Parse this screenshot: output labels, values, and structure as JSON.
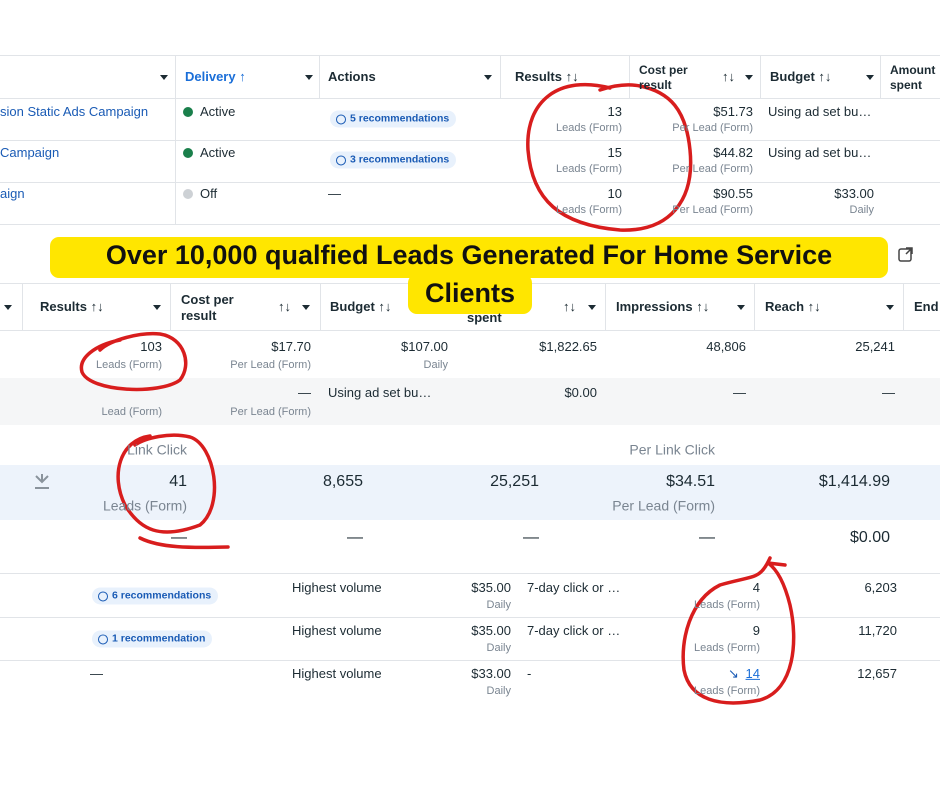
{
  "banner": {
    "lines": [
      "Over 10,000 qualfied Leads Generated For Home Service",
      "Clients"
    ]
  },
  "table1": {
    "headers": [
      "Delivery ↑",
      "Actions",
      "Results ↑↓",
      {
        "text": "Cost per result",
        "icon": "↑↓"
      },
      "Budget ↑↓",
      "Amount spent"
    ],
    "rows": [
      {
        "name": "sion Static Ads Campaign",
        "delivery": "Active",
        "actions": "5 recommendations",
        "results": "13",
        "results_type": "Leads (Form)",
        "cost": "$51.73",
        "cost_type": "Per Lead (Form)",
        "budget": "Using ad set bu…"
      },
      {
        "name": "Campaign",
        "delivery": "Active",
        "actions": "3 recommendations",
        "results": "15",
        "results_type": "Leads (Form)",
        "cost": "$44.82",
        "cost_type": "Per Lead (Form)",
        "budget": "Using ad set bu…"
      },
      {
        "name": "aign",
        "delivery": "Off",
        "actions": "—",
        "results": "10",
        "results_type": "Leads (Form)",
        "cost": "$90.55",
        "cost_type": "Per Lead (Form)",
        "budget": "$33.00",
        "budget_type": "Daily"
      }
    ]
  },
  "table2": {
    "headers": [
      "Results ↑↓",
      {
        "text": "Cost per result",
        "icon": "↑↓"
      },
      "Budget ↑↓",
      {
        "text": "spent",
        "icon": "↑↓"
      },
      "Impressions ↑↓",
      "Reach ↑↓",
      "End"
    ],
    "rows": [
      {
        "results": "103",
        "results_type": "Leads (Form)",
        "cost": "$17.70",
        "cost_type": "Per Lead (Form)",
        "budget": "$107.00",
        "budget_type": "Daily",
        "spent": "$1,822.65",
        "impressions": "48,806",
        "reach": "25,241"
      },
      {
        "results_type": "Lead (Form)",
        "cost": "—",
        "cost_type": "Per Lead (Form)",
        "budget": "Using ad set bu…",
        "spent": "$0.00",
        "impressions": "—",
        "reach": "—"
      }
    ]
  },
  "table3": {
    "rows": [
      {
        "results_type": "Link Click",
        "cost_type": "Per Link Click"
      },
      {
        "results": "41",
        "results_type": "Leads (Form)",
        "impressions": "8,655",
        "reach": "25,251",
        "cost": "$34.51",
        "cost_type": "Per Lead (Form)",
        "spent": "$1,414.99"
      },
      {
        "results": "—",
        "impressions": "—",
        "reach": "—",
        "cost": "—",
        "spent": "$0.00"
      }
    ]
  },
  "table4": {
    "rows": [
      {
        "actions": "6 recommendations",
        "bid_strategy": "Highest volume",
        "budget": "$35.00",
        "budget_type": "Daily",
        "attribution": "7-day click or …",
        "results": "4",
        "results_type": "Leads (Form)",
        "reach": "6,203"
      },
      {
        "actions": "1 recommendation",
        "bid_strategy": "Highest volume",
        "budget": "$35.00",
        "budget_type": "Daily",
        "attribution": "7-day click or …",
        "results": "9",
        "results_type": "Leads (Form)",
        "reach": "11,720"
      },
      {
        "actions": "—",
        "bid_strategy": "Highest volume",
        "budget": "$33.00",
        "budget_type": "Daily",
        "attribution": "-",
        "results_icon": "↘",
        "results": "14",
        "results_type": "Leads (Form)",
        "reach": "12,657"
      }
    ]
  }
}
